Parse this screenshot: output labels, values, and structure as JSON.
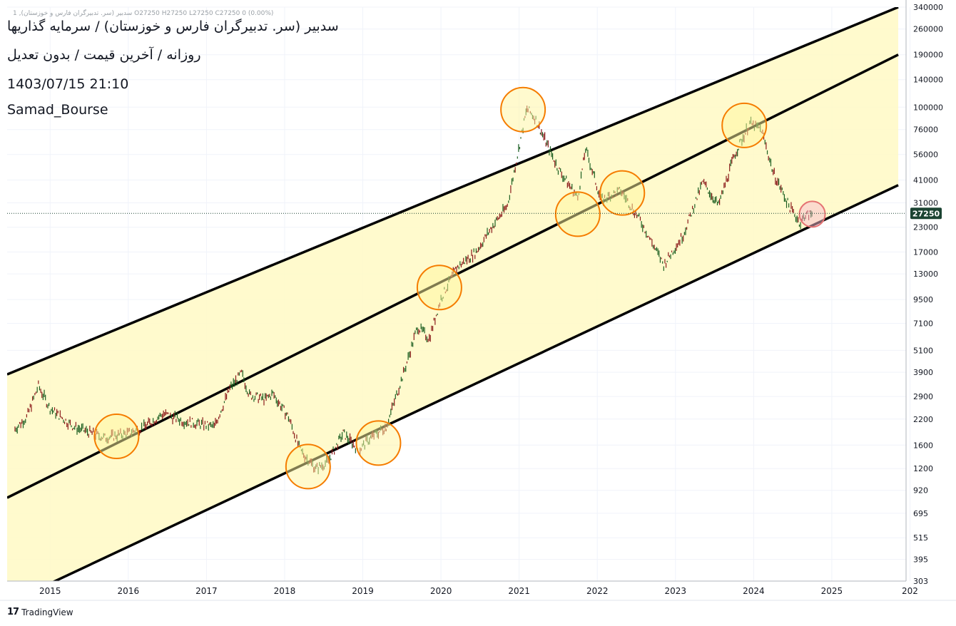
{
  "header": {
    "legend_line": "1 ,سدبیر (سر. تدبیرگران فارس و خوزستان)  O27250  H27250  L27250  C27250  0 (0.00%)",
    "title": "سدبیر (سر. تدبیرگران فارس و خوزستان) / سرمایه گذاریها",
    "subtitle": "روزانه / آخرین قیمت / بدون تعدیل",
    "timestamp": "1403/07/15 21:10",
    "author": "Samad_Bourse"
  },
  "branding": {
    "logo_icon": "tradingview-logo-icon",
    "label": "TradingView"
  },
  "colors": {
    "channel_fill": "#fff9c4",
    "channel_line": "#000000",
    "circle_orange": "#f57c00",
    "circle_fill": "#fff59d",
    "circle_red": "#e57373",
    "circle_red_fill": "#f8bbd0",
    "candle_up": "#1b5e20",
    "candle_down": "#8b1a1a",
    "price_label_bg": "#1b4332"
  },
  "chart_data": {
    "type": "candlestick-line",
    "scale": "log",
    "ylim": [
      303,
      340000
    ],
    "y_ticks": [
      "340000",
      "260000",
      "190000",
      "140000",
      "100000",
      "76000",
      "56000",
      "41000",
      "31000",
      "23000",
      "17000",
      "13000",
      "9500",
      "7100",
      "5100",
      "3900",
      "2900",
      "2200",
      "1600",
      "1200",
      "920",
      "695",
      "515",
      "395",
      "303"
    ],
    "x_ticks": [
      "2015",
      "2016",
      "2017",
      "2018",
      "2019",
      "2020",
      "2021",
      "2022",
      "2023",
      "2024",
      "2025",
      "202"
    ],
    "last_price": 27250,
    "last_price_label": "27250",
    "price_series": [
      {
        "t": 2014.55,
        "v": 1950
      },
      {
        "t": 2014.7,
        "v": 2250
      },
      {
        "t": 2014.85,
        "v": 3300
      },
      {
        "t": 2015.0,
        "v": 2500
      },
      {
        "t": 2015.3,
        "v": 2000
      },
      {
        "t": 2015.7,
        "v": 1750
      },
      {
        "t": 2016.0,
        "v": 1850
      },
      {
        "t": 2016.2,
        "v": 2000
      },
      {
        "t": 2016.45,
        "v": 2350
      },
      {
        "t": 2016.7,
        "v": 2150
      },
      {
        "t": 2017.1,
        "v": 2000
      },
      {
        "t": 2017.3,
        "v": 3200
      },
      {
        "t": 2017.45,
        "v": 3850
      },
      {
        "t": 2017.55,
        "v": 2950
      },
      {
        "t": 2017.75,
        "v": 2800
      },
      {
        "t": 2017.85,
        "v": 3000
      },
      {
        "t": 2018.05,
        "v": 2250
      },
      {
        "t": 2018.2,
        "v": 1500
      },
      {
        "t": 2018.4,
        "v": 1200
      },
      {
        "t": 2018.55,
        "v": 1300
      },
      {
        "t": 2018.75,
        "v": 1850
      },
      {
        "t": 2018.95,
        "v": 1500
      },
      {
        "t": 2019.1,
        "v": 1750
      },
      {
        "t": 2019.3,
        "v": 2000
      },
      {
        "t": 2019.55,
        "v": 4200
      },
      {
        "t": 2019.7,
        "v": 6800
      },
      {
        "t": 2019.85,
        "v": 5900
      },
      {
        "t": 2020.0,
        "v": 9600
      },
      {
        "t": 2020.2,
        "v": 14000
      },
      {
        "t": 2020.45,
        "v": 17000
      },
      {
        "t": 2020.65,
        "v": 23000
      },
      {
        "t": 2020.85,
        "v": 30000
      },
      {
        "t": 2021.05,
        "v": 78000
      },
      {
        "t": 2021.1,
        "v": 98000
      },
      {
        "t": 2021.2,
        "v": 88000
      },
      {
        "t": 2021.5,
        "v": 47000
      },
      {
        "t": 2021.75,
        "v": 33000
      },
      {
        "t": 2021.85,
        "v": 60000
      },
      {
        "t": 2022.05,
        "v": 32000
      },
      {
        "t": 2022.3,
        "v": 36000
      },
      {
        "t": 2022.55,
        "v": 25000
      },
      {
        "t": 2022.7,
        "v": 19000
      },
      {
        "t": 2022.85,
        "v": 14500
      },
      {
        "t": 2023.1,
        "v": 21000
      },
      {
        "t": 2023.35,
        "v": 40000
      },
      {
        "t": 2023.55,
        "v": 30000
      },
      {
        "t": 2023.75,
        "v": 55000
      },
      {
        "t": 2023.95,
        "v": 82000
      },
      {
        "t": 2024.1,
        "v": 76000
      },
      {
        "t": 2024.25,
        "v": 45000
      },
      {
        "t": 2024.45,
        "v": 30000
      },
      {
        "t": 2024.6,
        "v": 24000
      },
      {
        "t": 2024.65,
        "v": 26500
      },
      {
        "t": 2024.76,
        "v": 27250
      }
    ],
    "channel": {
      "upper": [
        {
          "t": 2014.45,
          "v": 3800
        },
        {
          "t": 2025.85,
          "v": 340000
        }
      ],
      "middle": [
        {
          "t": 2014.45,
          "v": 840
        },
        {
          "t": 2025.85,
          "v": 190000
        }
      ],
      "lower": [
        {
          "t": 2014.45,
          "v": 230
        },
        {
          "t": 2025.85,
          "v": 38500
        }
      ]
    },
    "annotations": [
      {
        "t": 2015.85,
        "v": 1780,
        "kind": "orange"
      },
      {
        "t": 2018.3,
        "v": 1230,
        "kind": "orange"
      },
      {
        "t": 2019.2,
        "v": 1640,
        "kind": "orange"
      },
      {
        "t": 2019.98,
        "v": 11000,
        "kind": "orange"
      },
      {
        "t": 2021.05,
        "v": 97000,
        "kind": "orange"
      },
      {
        "t": 2021.75,
        "v": 27000,
        "kind": "orange"
      },
      {
        "t": 2022.32,
        "v": 35000,
        "kind": "orange"
      },
      {
        "t": 2023.88,
        "v": 80000,
        "kind": "orange"
      },
      {
        "t": 2024.75,
        "v": 27000,
        "kind": "red"
      }
    ]
  }
}
